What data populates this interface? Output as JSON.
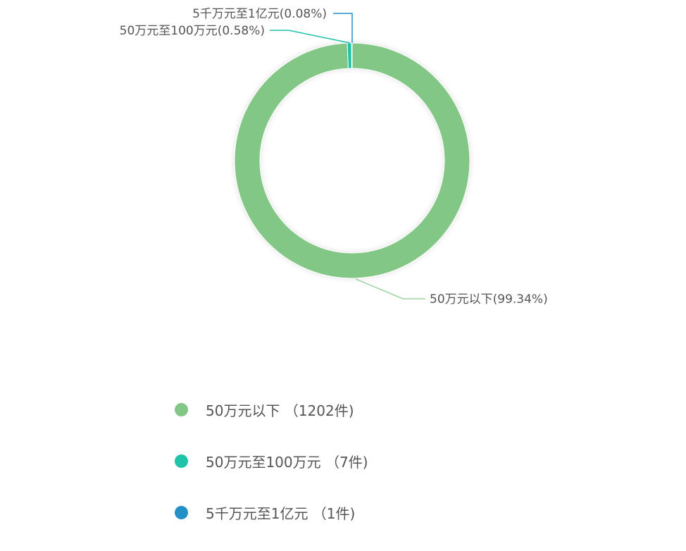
{
  "chart_data": {
    "type": "pie",
    "donut": true,
    "start": "top",
    "direction": "clockwise",
    "slices": [
      {
        "name": "50万元以下",
        "count": 1202,
        "percent": 99.34,
        "color": "#82c785",
        "label": "50万元以下(99.34%)",
        "legend": "50万元以下 （1202件)"
      },
      {
        "name": "50万元至100万元",
        "count": 7,
        "percent": 0.58,
        "color": "#1fc3a7",
        "label": "50万元至100万元(0.58%)",
        "legend": "50万元至100万元 （7件)"
      },
      {
        "name": "5千万元至1亿元",
        "count": 1,
        "percent": 0.08,
        "color": "#2490c8",
        "label": "5千万元至1亿元(0.08%)",
        "legend": "5千万元至1亿元 （1件)"
      }
    ],
    "legend_position": "bottom-left"
  }
}
